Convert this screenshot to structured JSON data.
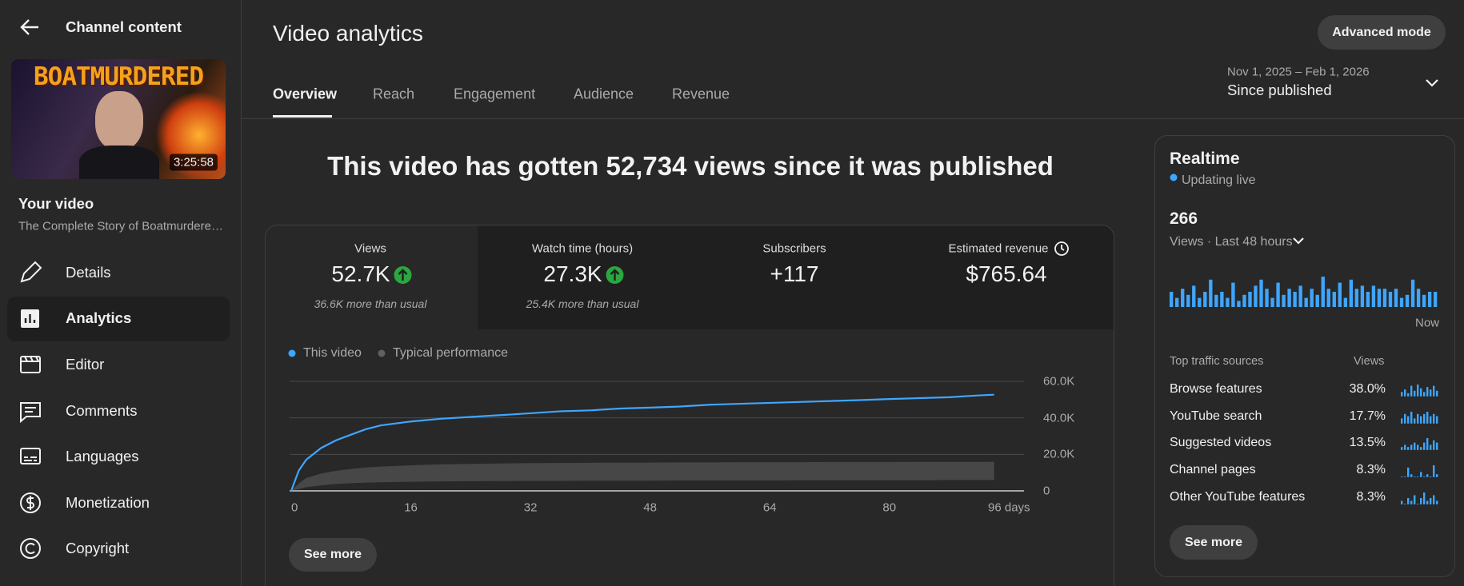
{
  "sidebar": {
    "back_label": "Channel content",
    "thumbnail_title": "BOATMURDERED",
    "duration": "3:25:58",
    "video_heading": "Your video",
    "video_title": "The Complete Story of Boatmurdere…",
    "nav": [
      "Details",
      "Analytics",
      "Editor",
      "Comments",
      "Languages",
      "Monetization",
      "Copyright"
    ]
  },
  "header": {
    "title": "Video analytics",
    "advanced_button": "Advanced mode",
    "tabs": [
      "Overview",
      "Reach",
      "Engagement",
      "Audience",
      "Revenue"
    ],
    "date_range": "Nov 1, 2025 – Feb 1, 2026",
    "period": "Since published"
  },
  "headline": "This video has gotten 52,734 views since it was published",
  "metrics": [
    {
      "label": "Views",
      "value": "52.7K",
      "note": "36.6K more than usual"
    },
    {
      "label": "Watch time (hours)",
      "value": "27.3K",
      "note": "25.4K more than usual"
    },
    {
      "label": "Subscribers",
      "value": "+117"
    },
    {
      "label": "Estimated revenue",
      "value": "$765.64"
    }
  ],
  "chart_data": {
    "type": "line",
    "x": [
      0,
      1,
      2,
      4,
      6,
      8,
      10,
      12,
      16,
      20,
      24,
      28,
      32,
      36,
      40,
      44,
      48,
      52,
      56,
      60,
      64,
      68,
      72,
      76,
      80,
      84,
      88,
      92,
      94
    ],
    "series": [
      {
        "name": "This video",
        "color": "#3ea6ff",
        "values": [
          0,
          11000,
          17000,
          23500,
          27700,
          30800,
          33800,
          35900,
          38000,
          39500,
          40500,
          41500,
          42500,
          43600,
          44100,
          45100,
          45600,
          46200,
          47200,
          47700,
          48200,
          48700,
          49200,
          49700,
          50300,
          50800,
          51300,
          52300,
          52700
        ]
      },
      {
        "name": "Typical performance",
        "color": "#606060",
        "values": [
          0,
          4000,
          7000,
          9500,
          11000,
          12000,
          12800,
          13300,
          14000,
          14500,
          14800,
          15000,
          15200,
          15300,
          15400,
          15500,
          15500,
          15600,
          15600,
          15700,
          15700,
          15700,
          15800,
          15800,
          15800,
          15900,
          15900,
          15900,
          16000
        ],
        "lower": [
          0,
          1000,
          2000,
          3000,
          3800,
          4200,
          4500,
          4700,
          5000,
          5200,
          5300,
          5400,
          5500,
          5500,
          5600,
          5600,
          5600,
          5700,
          5700,
          5700,
          5700,
          5800,
          5800,
          5800,
          5800,
          5800,
          5900,
          5900,
          5900
        ]
      }
    ],
    "xlim": [
      0,
      98
    ],
    "xticks": [
      0,
      16,
      32,
      48,
      64,
      80,
      {
        "value": 96,
        "label": "96 days"
      }
    ],
    "ylim": [
      0,
      60000
    ],
    "yticks": [
      0,
      {
        "value": 20000,
        "label": "20.0K"
      },
      {
        "value": 40000,
        "label": "40.0K"
      },
      {
        "value": 60000,
        "label": "60.0K"
      }
    ],
    "grid": true
  },
  "overview_see_more": "See more",
  "realtime": {
    "title": "Realtime",
    "status": "Updating live",
    "count": "266",
    "period": "Views · Last 48 hours",
    "color": "#3ea6ff",
    "bars": [
      5,
      3,
      6,
      4,
      7,
      3,
      5,
      9,
      4,
      5,
      3,
      8,
      2,
      4,
      5,
      7,
      9,
      6,
      3,
      8,
      4,
      6,
      5,
      7,
      3,
      6,
      4,
      10,
      6,
      5,
      8,
      3,
      9,
      6,
      7,
      5,
      7,
      6,
      6,
      5,
      6,
      3,
      4,
      9,
      6,
      4,
      5,
      5
    ],
    "now_label": "Now",
    "traffic_header": "Top traffic sources",
    "traffic_views_header": "Views",
    "traffic": [
      {
        "source": "Browse features",
        "share": "38.0%",
        "trend": [
          3,
          5,
          2,
          8,
          4,
          9,
          6,
          3,
          7,
          5,
          8,
          4
        ]
      },
      {
        "source": "YouTube search",
        "share": "17.7%",
        "trend": [
          2,
          4,
          3,
          5,
          2,
          4,
          3,
          4,
          5,
          3,
          4,
          3
        ]
      },
      {
        "source": "Suggested videos",
        "share": "13.5%",
        "trend": [
          1,
          2,
          1,
          2,
          3,
          2,
          1,
          3,
          5,
          2,
          4,
          3
        ]
      },
      {
        "source": "Channel pages",
        "share": "8.3%",
        "trend": [
          0,
          0,
          4,
          1,
          0,
          0,
          2,
          0,
          1,
          0,
          5,
          1
        ]
      },
      {
        "source": "Other YouTube features",
        "share": "8.3%",
        "trend": [
          1,
          0,
          2,
          1,
          3,
          0,
          2,
          4,
          1,
          2,
          3,
          1
        ]
      }
    ],
    "see_more": "See more"
  }
}
